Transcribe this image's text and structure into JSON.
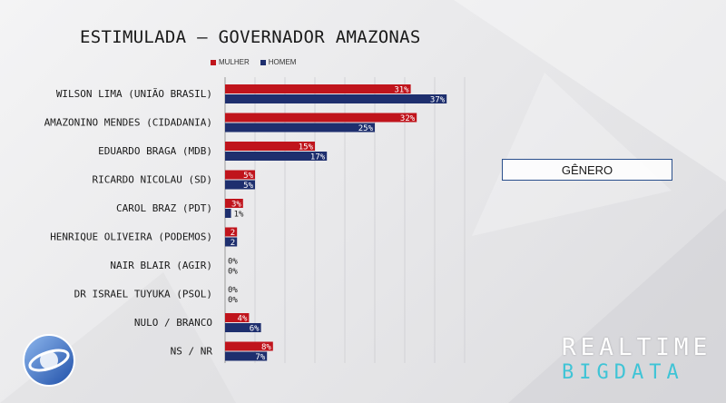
{
  "title": "ESTIMULADA – GOVERNADOR AMAZONAS",
  "legend": [
    {
      "label": "MULHER",
      "color": "#c0141c"
    },
    {
      "label": "HOMEM",
      "color": "#1e2f6e"
    }
  ],
  "selector": {
    "label": "GÊNERO"
  },
  "branding": {
    "line1": "REALTIME",
    "line2": "BIGDATA"
  },
  "chart_data": {
    "type": "bar",
    "orientation": "horizontal",
    "title": "ESTIMULADA – GOVERNADOR AMAZONAS",
    "categories": [
      "WILSON LIMA (UNIÃO BRASIL)",
      "AMAZONINO MENDES (CIDADANIA)",
      "EDUARDO BRAGA (MDB)",
      "RICARDO NICOLAU (SD)",
      "CAROL BRAZ (PDT)",
      "HENRIQUE OLIVEIRA (PODEMOS)",
      "NAIR BLAIR (AGIR)",
      "DR ISRAEL TUYUKA (PSOL)",
      "NULO / BRANCO",
      "NS / NR"
    ],
    "series": [
      {
        "name": "MULHER",
        "color": "#c0141c",
        "values": [
          31,
          32,
          15,
          5,
          3,
          2,
          0,
          0,
          4,
          8
        ],
        "labels": [
          "31%",
          "32%",
          "15%",
          "5%",
          "3%",
          "2",
          "0%",
          "0%",
          "4%",
          "8%"
        ]
      },
      {
        "name": "HOMEM",
        "color": "#1e2f6e",
        "values": [
          37,
          25,
          17,
          5,
          1,
          2,
          0,
          0,
          6,
          7
        ],
        "labels": [
          "37%",
          "25%",
          "17%",
          "5%",
          "1%",
          "2",
          "0%",
          "0%",
          "6%",
          "7%"
        ]
      }
    ],
    "xlim": [
      0,
      40
    ],
    "grid": true,
    "legend_position": "top"
  }
}
